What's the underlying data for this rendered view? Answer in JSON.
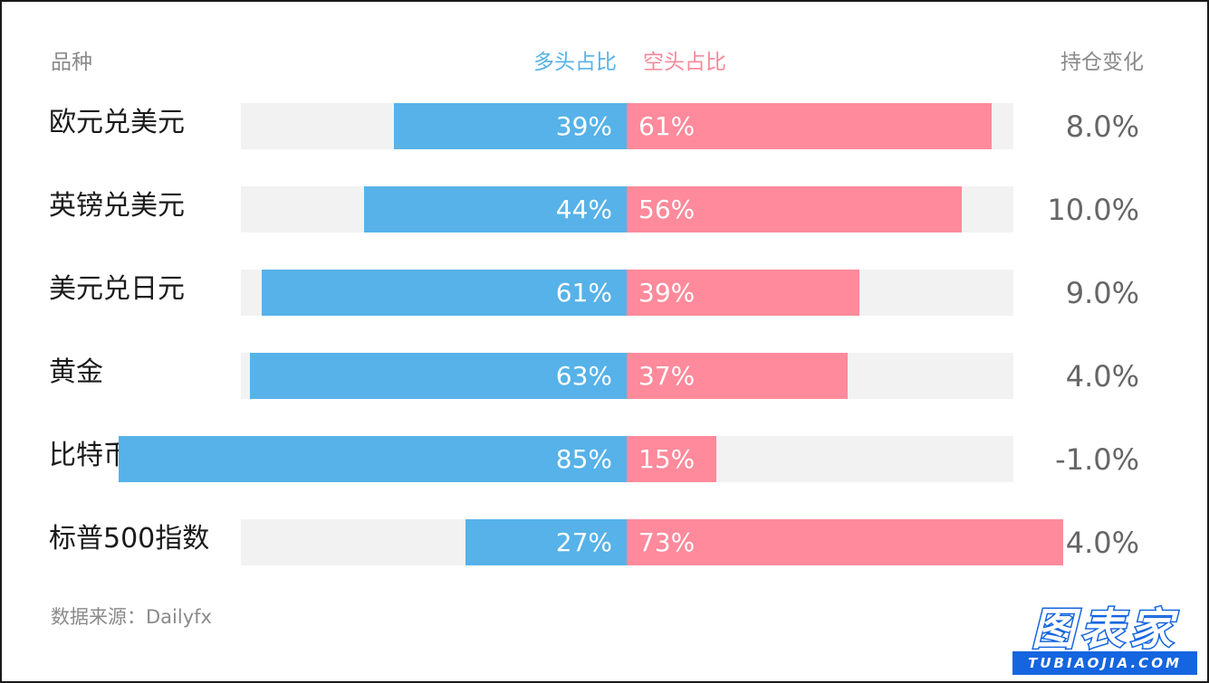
{
  "header": {
    "variety": "品种",
    "long_ratio": "多头占比",
    "short_ratio": "空头占比",
    "position_change": "持仓变化"
  },
  "colors": {
    "long": "#56b2e8",
    "short": "#fe8a9b",
    "track": "#f2f2f2"
  },
  "chart_data": {
    "type": "bar",
    "categories": [
      "欧元兑美元",
      "英镑兑美元",
      "美元兑日元",
      "黄金",
      "比特币",
      "标普500指数"
    ],
    "series": [
      {
        "name": "多头占比",
        "values": [
          39,
          44,
          61,
          63,
          85,
          27
        ]
      },
      {
        "name": "空头占比",
        "values": [
          61,
          56,
          39,
          37,
          15,
          73
        ]
      }
    ],
    "labels_long": [
      "39%",
      "44%",
      "61%",
      "63%",
      "85%",
      "27%"
    ],
    "labels_short": [
      "61%",
      "56%",
      "39%",
      "37%",
      "15%",
      "73%"
    ],
    "position_change": [
      "8.0%",
      "10.0%",
      "9.0%",
      "4.0%",
      "-1.0%",
      "4.0%"
    ],
    "ylim": [
      0,
      100
    ]
  },
  "source": "数据来源：Dailyfx",
  "logo": {
    "main": "图表家",
    "sub": "TUBIAOJIA.COM"
  }
}
